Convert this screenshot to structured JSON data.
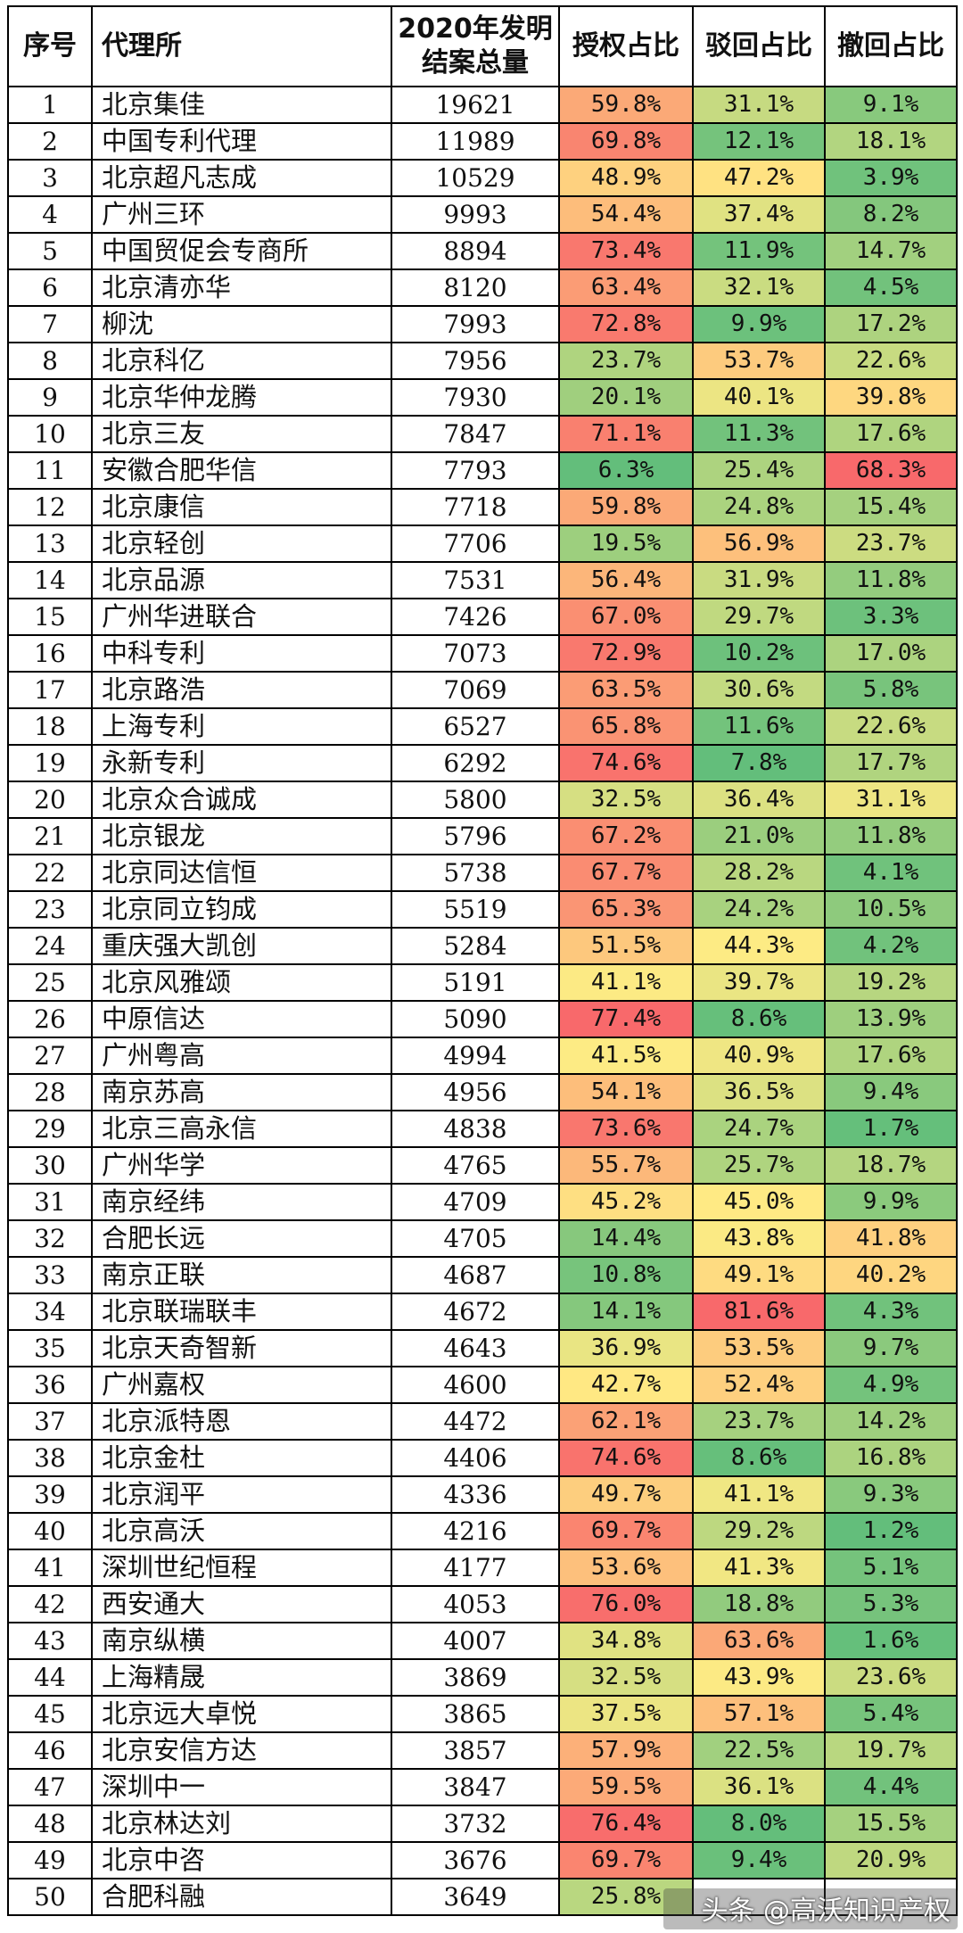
{
  "headers": {
    "rank": "序号",
    "agency": "代理所",
    "total_line1": "2020年发明",
    "total_line2": "结案总量",
    "grant": "授权占比",
    "reject": "驳回占比",
    "withdraw": "撤回占比"
  },
  "rows": [
    [
      "1",
      "北京集佳",
      "19621",
      "59.8%",
      "31.1%",
      "9.1%"
    ],
    [
      "2",
      "中国专利代理",
      "11989",
      "69.8%",
      "12.1%",
      "18.1%"
    ],
    [
      "3",
      "北京超凡志成",
      "10529",
      "48.9%",
      "47.2%",
      "3.9%"
    ],
    [
      "4",
      "广州三环",
      "9993",
      "54.4%",
      "37.4%",
      "8.2%"
    ],
    [
      "5",
      "中国贸促会专商所",
      "8894",
      "73.4%",
      "11.9%",
      "14.7%"
    ],
    [
      "6",
      "北京清亦华",
      "8120",
      "63.4%",
      "32.1%",
      "4.5%"
    ],
    [
      "7",
      "柳沈",
      "7993",
      "72.8%",
      "9.9%",
      "17.2%"
    ],
    [
      "8",
      "北京科亿",
      "7956",
      "23.7%",
      "53.7%",
      "22.6%"
    ],
    [
      "9",
      "北京华仲龙腾",
      "7930",
      "20.1%",
      "40.1%",
      "39.8%"
    ],
    [
      "10",
      "北京三友",
      "7847",
      "71.1%",
      "11.3%",
      "17.6%"
    ],
    [
      "11",
      "安徽合肥华信",
      "7793",
      "6.3%",
      "25.4%",
      "68.3%"
    ],
    [
      "12",
      "北京康信",
      "7718",
      "59.8%",
      "24.8%",
      "15.4%"
    ],
    [
      "13",
      "北京轻创",
      "7706",
      "19.5%",
      "56.9%",
      "23.7%"
    ],
    [
      "14",
      "北京品源",
      "7531",
      "56.4%",
      "31.9%",
      "11.8%"
    ],
    [
      "15",
      "广州华进联合",
      "7426",
      "67.0%",
      "29.7%",
      "3.3%"
    ],
    [
      "16",
      "中科专利",
      "7073",
      "72.9%",
      "10.2%",
      "17.0%"
    ],
    [
      "17",
      "北京路浩",
      "7069",
      "63.5%",
      "30.6%",
      "5.8%"
    ],
    [
      "18",
      "上海专利",
      "6527",
      "65.8%",
      "11.6%",
      "22.6%"
    ],
    [
      "19",
      "永新专利",
      "6292",
      "74.6%",
      "7.8%",
      "17.7%"
    ],
    [
      "20",
      "北京众合诚成",
      "5800",
      "32.5%",
      "36.4%",
      "31.1%"
    ],
    [
      "21",
      "北京银龙",
      "5796",
      "67.2%",
      "21.0%",
      "11.8%"
    ],
    [
      "22",
      "北京同达信恒",
      "5738",
      "67.7%",
      "28.2%",
      "4.1%"
    ],
    [
      "23",
      "北京同立钧成",
      "5519",
      "65.3%",
      "24.2%",
      "10.5%"
    ],
    [
      "24",
      "重庆强大凯创",
      "5284",
      "51.5%",
      "44.3%",
      "4.2%"
    ],
    [
      "25",
      "北京风雅颂",
      "5191",
      "41.1%",
      "39.7%",
      "19.2%"
    ],
    [
      "26",
      "中原信达",
      "5090",
      "77.4%",
      "8.6%",
      "13.9%"
    ],
    [
      "27",
      "广州粤高",
      "4994",
      "41.5%",
      "40.9%",
      "17.6%"
    ],
    [
      "28",
      "南京苏高",
      "4956",
      "54.1%",
      "36.5%",
      "9.4%"
    ],
    [
      "29",
      "北京三高永信",
      "4838",
      "73.6%",
      "24.7%",
      "1.7%"
    ],
    [
      "30",
      "广州华学",
      "4765",
      "55.7%",
      "25.7%",
      "18.7%"
    ],
    [
      "31",
      "南京经纬",
      "4709",
      "45.2%",
      "45.0%",
      "9.9%"
    ],
    [
      "32",
      "合肥长远",
      "4705",
      "14.4%",
      "43.8%",
      "41.8%"
    ],
    [
      "33",
      "南京正联",
      "4687",
      "10.8%",
      "49.1%",
      "40.2%"
    ],
    [
      "34",
      "北京联瑞联丰",
      "4672",
      "14.1%",
      "81.6%",
      "4.3%"
    ],
    [
      "35",
      "北京天奇智新",
      "4643",
      "36.9%",
      "53.5%",
      "9.7%"
    ],
    [
      "36",
      "广州嘉权",
      "4600",
      "42.7%",
      "52.4%",
      "4.9%"
    ],
    [
      "37",
      "北京派特恩",
      "4472",
      "62.1%",
      "23.7%",
      "14.2%"
    ],
    [
      "38",
      "北京金杜",
      "4406",
      "74.6%",
      "8.6%",
      "16.8%"
    ],
    [
      "39",
      "北京润平",
      "4336",
      "49.7%",
      "41.1%",
      "9.3%"
    ],
    [
      "40",
      "北京高沃",
      "4216",
      "69.7%",
      "29.2%",
      "1.2%"
    ],
    [
      "41",
      "深圳世纪恒程",
      "4177",
      "53.6%",
      "41.3%",
      "5.1%"
    ],
    [
      "42",
      "西安通大",
      "4053",
      "76.0%",
      "18.8%",
      "5.3%"
    ],
    [
      "43",
      "南京纵横",
      "4007",
      "34.8%",
      "63.6%",
      "1.6%"
    ],
    [
      "44",
      "上海精晟",
      "3869",
      "32.5%",
      "43.9%",
      "23.6%"
    ],
    [
      "45",
      "北京远大卓悦",
      "3865",
      "37.5%",
      "57.1%",
      "5.4%"
    ],
    [
      "46",
      "北京安信方达",
      "3857",
      "57.9%",
      "22.5%",
      "19.7%"
    ],
    [
      "47",
      "深圳中一",
      "3847",
      "59.5%",
      "36.1%",
      "4.4%"
    ],
    [
      "48",
      "北京林达刘",
      "3732",
      "76.4%",
      "8.0%",
      "15.5%"
    ],
    [
      "49",
      "北京中咨",
      "3676",
      "69.7%",
      "9.4%",
      "20.9%"
    ],
    [
      "50",
      "合肥科融",
      "3649",
      "25.8%",
      "",
      ""
    ]
  ],
  "watermark_text": "头条 @高沃知识产权"
}
